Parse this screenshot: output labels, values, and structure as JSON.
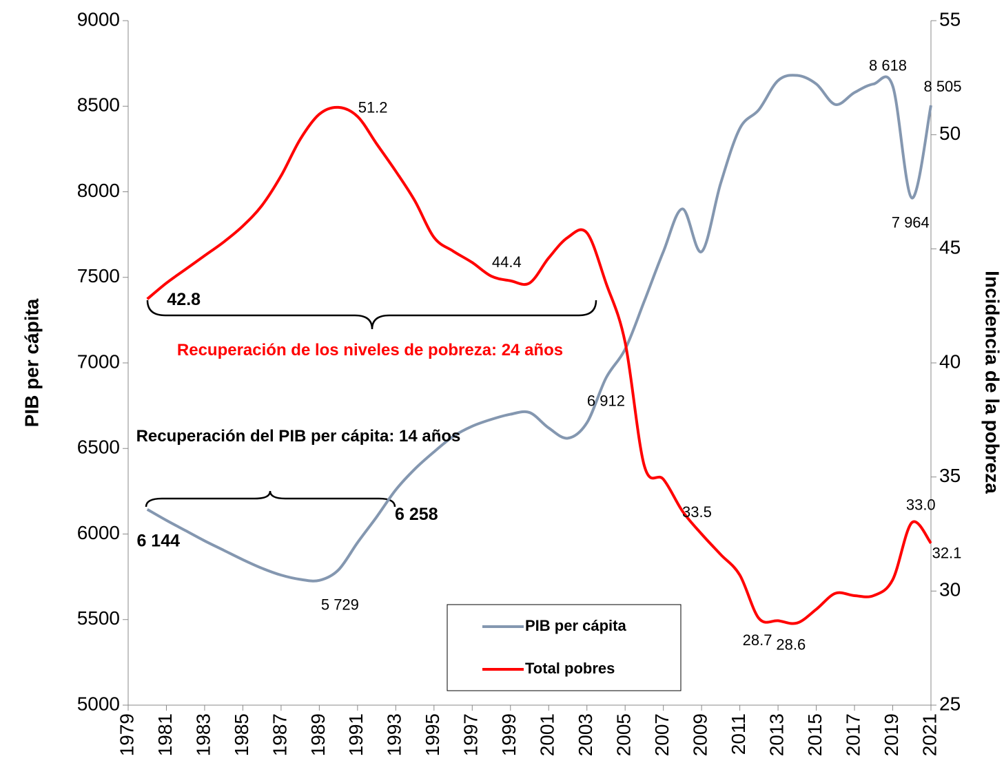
{
  "chart_data": {
    "type": "line",
    "y_label": "PIB per cápita",
    "y2_label": "Incidencia de la pobreza",
    "x": [
      1980,
      1981,
      1982,
      1983,
      1984,
      1985,
      1986,
      1987,
      1988,
      1989,
      1990,
      1991,
      1992,
      1993,
      1994,
      1995,
      1996,
      1997,
      1998,
      1999,
      2000,
      2001,
      2002,
      2003,
      2004,
      2005,
      2006,
      2007,
      2008,
      2009,
      2010,
      2011,
      2012,
      2013,
      2014,
      2015,
      2016,
      2017,
      2018,
      2019,
      2020,
      2021
    ],
    "xlim": [
      1979,
      2021
    ],
    "xticks": [
      1979,
      1981,
      1983,
      1985,
      1987,
      1989,
      1991,
      1993,
      1995,
      1997,
      1999,
      2001,
      2003,
      2005,
      2007,
      2009,
      2011,
      2013,
      2015,
      2017,
      2019,
      2021
    ],
    "ylim": [
      5000,
      9000
    ],
    "yticks": [
      5000,
      5500,
      6000,
      6500,
      7000,
      7500,
      8000,
      8500,
      9000
    ],
    "y2lim": [
      25,
      55
    ],
    "y2ticks": [
      25,
      30,
      35,
      40,
      45,
      50,
      55
    ],
    "series": [
      {
        "name": "PIB per cápita",
        "color": "#8497b0",
        "values": [
          6144,
          6080,
          6020,
          5960,
          5905,
          5850,
          5800,
          5760,
          5735,
          5729,
          5790,
          5950,
          6100,
          6258,
          6380,
          6480,
          6570,
          6630,
          6670,
          6700,
          6710,
          6620,
          6560,
          6650,
          6912,
          7080,
          7360,
          7650,
          7900,
          7650,
          8050,
          8370,
          8480,
          8650,
          8680,
          8630,
          8510,
          8580,
          8630,
          8618,
          7964,
          8505
        ],
        "value_labels": [
          "6 144",
          null,
          null,
          null,
          null,
          null,
          null,
          null,
          null,
          "5 729",
          null,
          null,
          null,
          "6 258",
          null,
          null,
          null,
          null,
          null,
          null,
          null,
          null,
          null,
          null,
          "6 912",
          null,
          null,
          null,
          null,
          null,
          null,
          null,
          null,
          null,
          null,
          null,
          null,
          null,
          null,
          "8 618",
          "7 964",
          "8 505"
        ]
      },
      {
        "name": "Total pobres",
        "color": "#ff0000",
        "axis": "y2",
        "values": [
          42.8,
          43.5,
          44.1,
          44.7,
          45.3,
          46.0,
          46.9,
          48.2,
          49.8,
          50.9,
          51.2,
          50.8,
          49.6,
          48.4,
          47.1,
          45.5,
          44.9,
          44.4,
          43.8,
          43.6,
          43.5,
          44.6,
          45.5,
          45.7,
          43.5,
          40.9,
          35.5,
          34.9,
          33.5,
          32.5,
          31.6,
          30.7,
          28.8,
          28.7,
          28.6,
          29.2,
          29.9,
          29.8,
          29.8,
          30.5,
          33.0,
          32.1
        ],
        "value_labels": [
          "42.8",
          null,
          null,
          null,
          null,
          null,
          null,
          null,
          null,
          null,
          "51.2",
          null,
          null,
          null,
          null,
          null,
          null,
          "44.4",
          null,
          null,
          null,
          null,
          null,
          null,
          null,
          null,
          null,
          null,
          "33.5",
          null,
          null,
          null,
          null,
          "28.7",
          "28.6",
          null,
          null,
          null,
          null,
          null,
          "33.0",
          "32.1"
        ]
      }
    ],
    "annotations": [
      "Recuperación de los niveles de pobreza: 24 años",
      "Recuperación del PIB per cápita: 14 años"
    ]
  }
}
